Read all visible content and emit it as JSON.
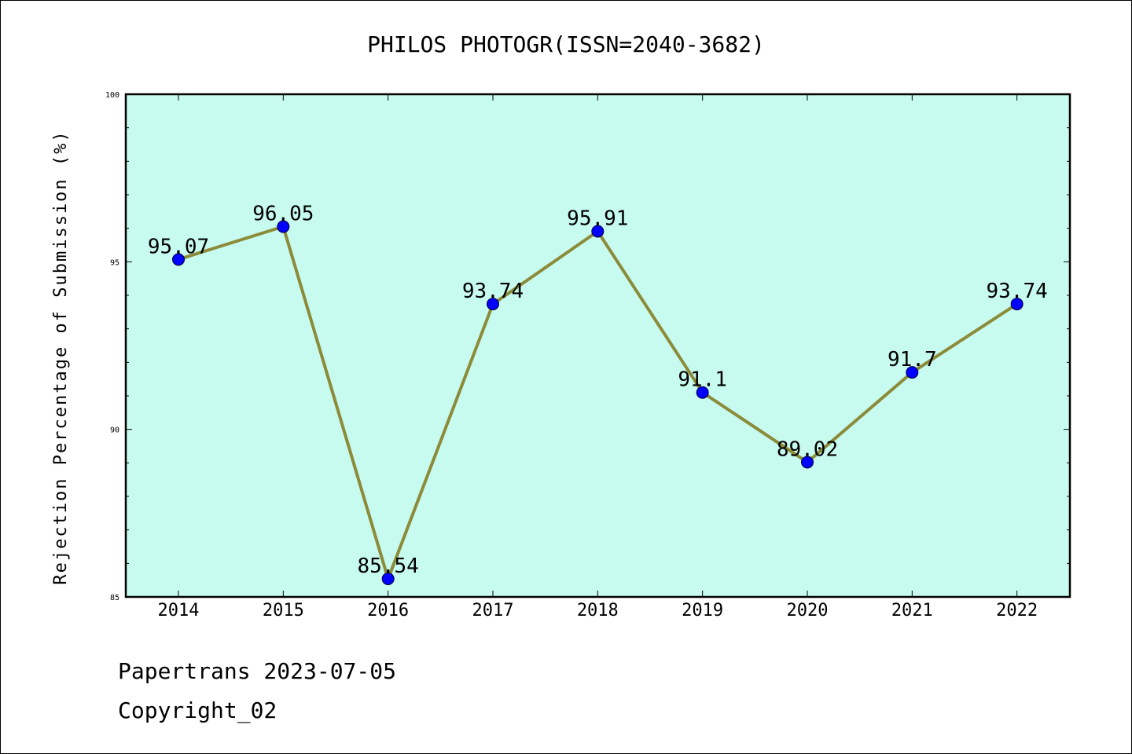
{
  "chart_data": {
    "type": "line",
    "title": "PHILOS PHOTOGR(ISSN=2040-3682)",
    "xlabel": "",
    "ylabel": "Rejection Percentage of Submission (%)",
    "categories": [
      "2014",
      "2015",
      "2016",
      "2017",
      "2018",
      "2019",
      "2020",
      "2021",
      "2022"
    ],
    "series": [
      {
        "values": [
          95.07,
          96.05,
          85.54,
          93.74,
          95.91,
          91.1,
          89.02,
          91.7,
          93.74
        ],
        "labels": [
          "95.07",
          "96.05",
          "85.54",
          "93.74",
          "95.91",
          "91.1",
          "89.02",
          "91.7",
          "93.74"
        ],
        "line_color": "#8b8b3a",
        "marker_color": "#0000ff"
      }
    ],
    "ylim": [
      85,
      100
    ],
    "yticks": [
      "85",
      "90",
      "95",
      "100"
    ],
    "plot_background": "#c8fbef",
    "grid": false,
    "legend": "none"
  },
  "footer": {
    "line1": "Papertrans 2023-07-05",
    "line2": "Copyright_02"
  }
}
